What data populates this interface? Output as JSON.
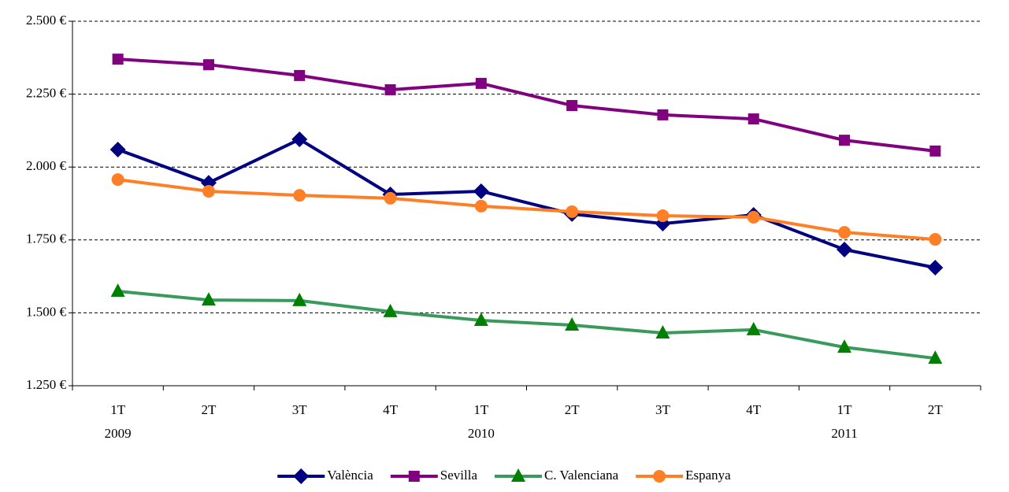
{
  "chart_data": {
    "type": "line",
    "categories": [
      "1T",
      "2T",
      "3T",
      "4T",
      "1T",
      "2T",
      "3T",
      "4T",
      "1T",
      "2T"
    ],
    "category_years": [
      "2009",
      null,
      null,
      null,
      "2010",
      null,
      null,
      null,
      "2011",
      null
    ],
    "ylim": [
      1250,
      2500
    ],
    "yticks": [
      {
        "value": 1250,
        "label": "1.250 €"
      },
      {
        "value": 1500,
        "label": "1.500 €"
      },
      {
        "value": 1750,
        "label": "1.750 €"
      },
      {
        "value": 2000,
        "label": "2.000 €"
      },
      {
        "value": 2250,
        "label": "2.250 €"
      },
      {
        "value": 2500,
        "label": "2.500 €"
      }
    ],
    "grid": true,
    "legend": "bottom",
    "series": [
      {
        "name": "València",
        "color": "#000080",
        "marker": "diamond",
        "marker_color": "#000080",
        "values": [
          2060,
          1946,
          2095,
          1906,
          1917,
          1839,
          1806,
          1836,
          1717,
          1655
        ]
      },
      {
        "name": "Sevilla",
        "color": "#800080",
        "marker": "square",
        "marker_color": "#800080",
        "values": [
          2370,
          2351,
          2314,
          2265,
          2287,
          2211,
          2179,
          2165,
          2092,
          2055
        ]
      },
      {
        "name": "C. Valenciana",
        "color": "#3a9a5e",
        "marker": "triangle",
        "marker_color": "#008000",
        "values": [
          1574,
          1544,
          1542,
          1504,
          1474,
          1458,
          1431,
          1442,
          1382,
          1344
        ]
      },
      {
        "name": "Espanya",
        "color": "#ff7f27",
        "marker": "circle",
        "marker_color": "#ff7f27",
        "values": [
          1957,
          1917,
          1903,
          1893,
          1866,
          1847,
          1833,
          1828,
          1776,
          1752
        ]
      }
    ]
  }
}
